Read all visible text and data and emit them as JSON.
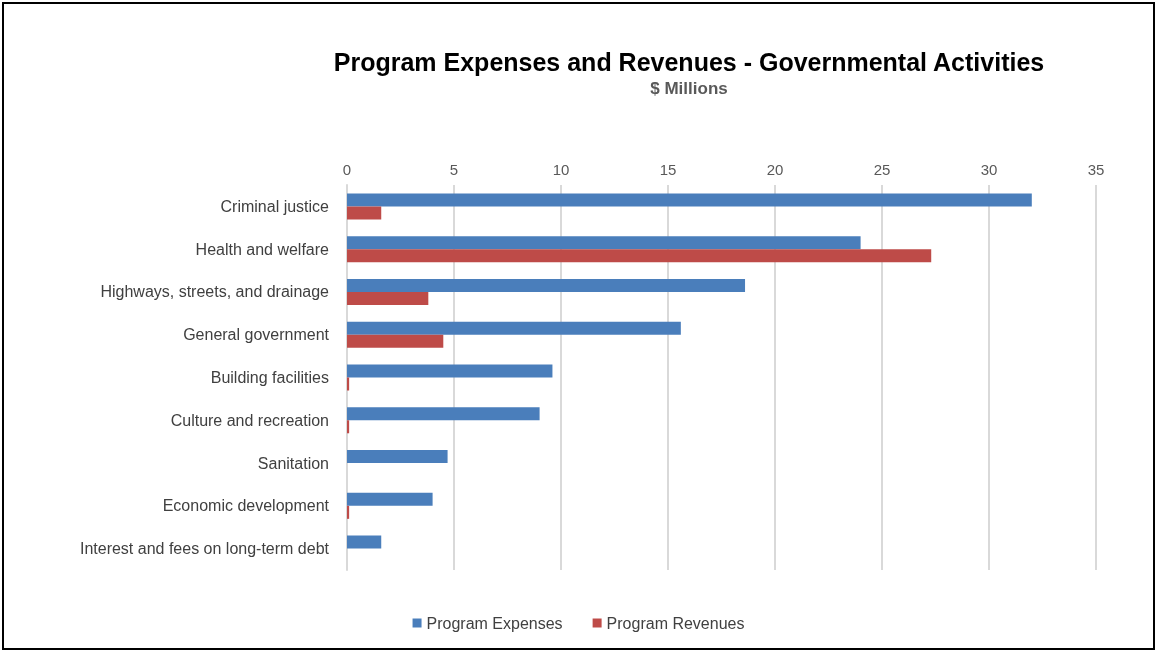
{
  "chart_data": {
    "type": "bar",
    "orientation": "horizontal",
    "title": "Program Expenses and Revenues - Governmental Activities",
    "subtitle": "$ Millions",
    "categories": [
      "Criminal justice",
      "Health and welfare",
      "Highways, streets, and drainage",
      "General government",
      "Building facilities",
      "Culture and recreation",
      "Sanitation",
      "Economic development",
      "Interest and fees on long-term debt"
    ],
    "series": [
      {
        "name": "Program Expenses",
        "color": "#4a7ebb",
        "values": [
          32.0,
          24.0,
          18.6,
          15.6,
          9.6,
          9.0,
          4.7,
          4.0,
          1.6
        ]
      },
      {
        "name": "Program Revenues",
        "color": "#be4b48",
        "values": [
          1.6,
          27.3,
          3.8,
          4.5,
          0.1,
          0.1,
          0,
          0.1,
          0
        ]
      }
    ],
    "xlim": [
      0,
      35
    ],
    "xticks": [
      0,
      5,
      10,
      15,
      20,
      25,
      30,
      35
    ],
    "grid": "x",
    "legend": "bottom"
  }
}
